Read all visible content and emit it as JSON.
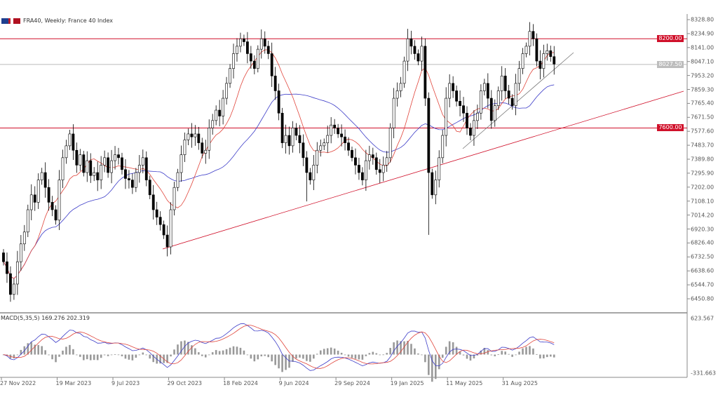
{
  "header": {
    "symbol_title": "FRA40, Weekly:  France 40 Index",
    "icons": [
      "chart-type-icon",
      "broker-logo-icon"
    ]
  },
  "indicator": {
    "label": "MACD(5,35,5) 169.276 202.319"
  },
  "colors": {
    "fast_ma": "#e0443a",
    "slow_ma": "#3c3cc8",
    "level_line": "#d0102a",
    "trend_line": "#d0102a",
    "candle": "#000000"
  },
  "chart_data": {
    "type": "candlestick",
    "timeframe": "Weekly",
    "y_axis_ticks": [
      "8328.80",
      "8234.90",
      "8141.00",
      "8047.10",
      "7953.20",
      "7859.30",
      "7765.40",
      "7671.50",
      "7577.60",
      "7483.70",
      "7389.80",
      "7295.90",
      "7202.00",
      "7108.10",
      "7014.20",
      "6920.30",
      "6826.40",
      "6732.50",
      "6638.60",
      "6544.70",
      "6450.80"
    ],
    "x_axis_ticks": [
      "27 Nov 2022",
      "19 Mar 2023",
      "9 Jul 2023",
      "29 Oct 2023",
      "18 Feb 2024",
      "9 Jun 2024",
      "29 Sep 2024",
      "19 Jan 2025",
      "11 May 2025",
      "31 Aug 2025"
    ],
    "levels": [
      {
        "price": 8200.0,
        "label": "8200.00"
      },
      {
        "price": 7600.0,
        "label": "7600.00"
      }
    ],
    "current_price_label": "8027.50",
    "macd_axis": [
      "623.567",
      "-331.663"
    ],
    "close": [
      6700,
      6620,
      6480,
      6550,
      6700,
      6820,
      6900,
      7050,
      7150,
      7100,
      7250,
      7300,
      7200,
      7100,
      7050,
      6980,
      7250,
      7400,
      7480,
      7560,
      7450,
      7350,
      7420,
      7300,
      7380,
      7280,
      7300,
      7250,
      7350,
      7400,
      7300,
      7380,
      7420,
      7400,
      7320,
      7260,
      7250,
      7200,
      7300,
      7350,
      7400,
      7250,
      7150,
      7050,
      7000,
      6950,
      6880,
      6800,
      7050,
      7200,
      7300,
      7420,
      7520,
      7560,
      7540,
      7560,
      7500,
      7430,
      7450,
      7600,
      7650,
      7720,
      7680,
      7800,
      7900,
      8000,
      8100,
      8150,
      8200,
      8180,
      8100,
      8050,
      8000,
      8130,
      8200,
      8150,
      8100,
      7950,
      7850,
      7700,
      7500,
      7550,
      7480,
      7600,
      7550,
      7500,
      7400,
      7300,
      7250,
      7350,
      7450,
      7480,
      7500,
      7550,
      7620,
      7600,
      7560,
      7540,
      7500,
      7450,
      7400,
      7350,
      7300,
      7250,
      7380,
      7420,
      7400,
      7320,
      7300,
      7350,
      7400,
      7600,
      7800,
      7850,
      7900,
      8050,
      8200,
      8150,
      8100,
      8050,
      8150,
      7800,
      7300,
      7150,
      7250,
      7400,
      7550,
      7800,
      7900,
      7850,
      7780,
      7750,
      7700,
      7600,
      7550,
      7650,
      7700,
      7850,
      7900,
      7800,
      7650,
      7750,
      7850,
      7950,
      7850,
      7800,
      7750,
      7900,
      8000,
      8100,
      8150,
      8250,
      8200,
      8050,
      8000,
      8100,
      8120,
      8080,
      8030
    ]
  }
}
